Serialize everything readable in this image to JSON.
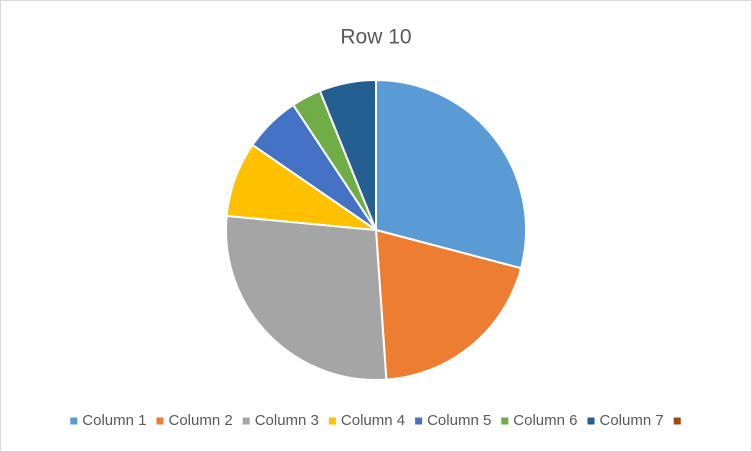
{
  "chart_data": {
    "type": "pie",
    "title": "Row 10",
    "categories": [
      "Column 1",
      "Column 2",
      "Column 3",
      "Column 4",
      "Column 5",
      "Column 6",
      "Column 7",
      null
    ],
    "values": [
      29.1,
      19.8,
      27.6,
      8.1,
      6.1,
      3.2,
      6.1,
      0
    ],
    "colors": [
      "#5b9bd5",
      "#ed7d31",
      "#a5a5a5",
      "#ffc000",
      "#4472c4",
      "#70ad47",
      "#255e91",
      "#9e480e"
    ],
    "legend": "bottom"
  }
}
